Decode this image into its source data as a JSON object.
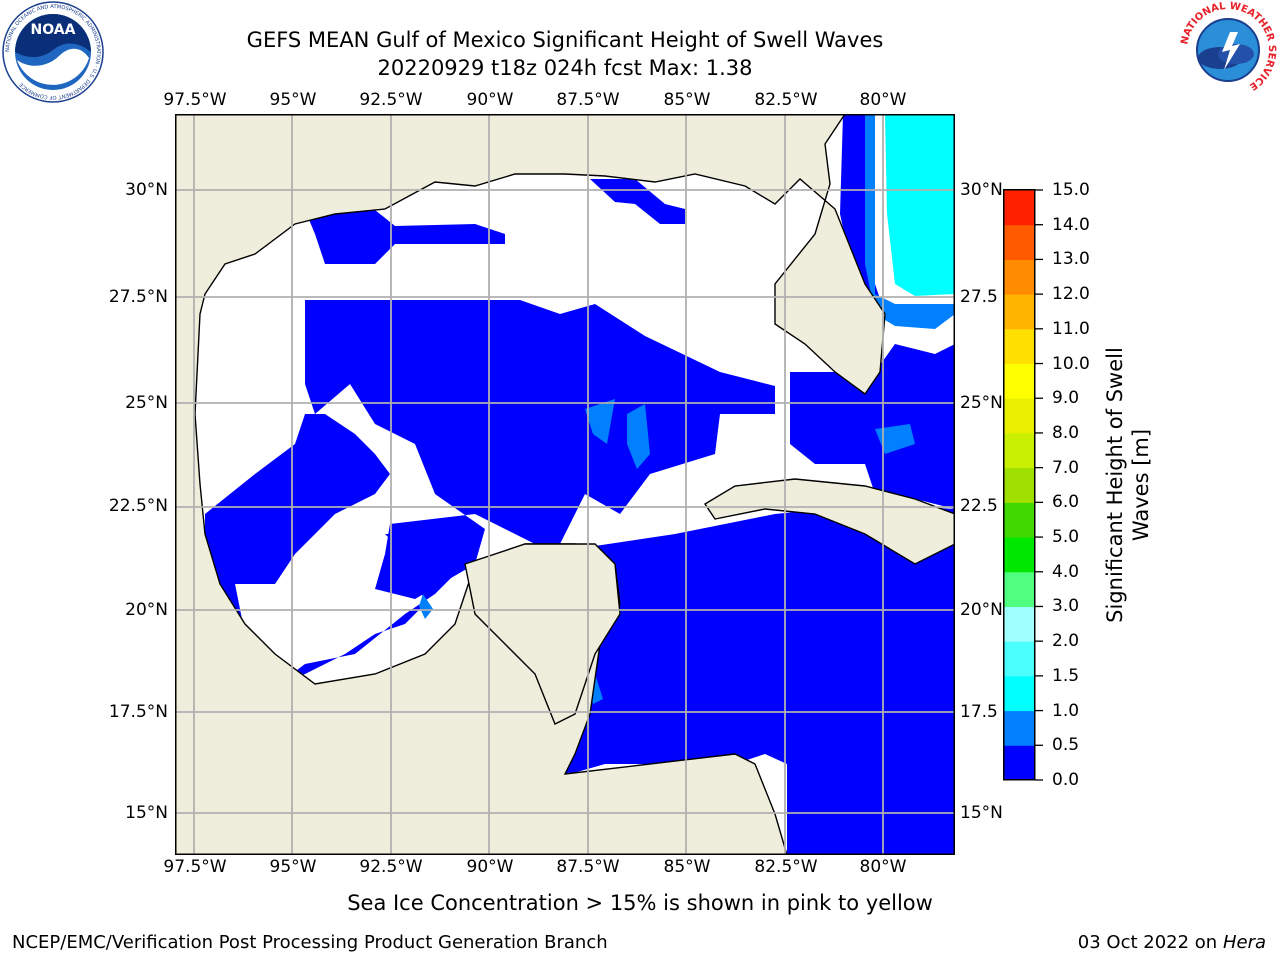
{
  "title": {
    "line1": "GEFS MEAN Gulf of Mexico Significant Height of Swell Waves",
    "line2": "20220929 t18z 024h fcst   Max: 1.38"
  },
  "map": {
    "lon_labels": [
      "97.5°W",
      "95°W",
      "92.5°W",
      "90°W",
      "87.5°W",
      "85°W",
      "82.5°W",
      "80°W"
    ],
    "lat_labels_left": [
      "30°N",
      "27.5°N",
      "25°N",
      "22.5°N",
      "20°N",
      "17.5°N",
      "15°N"
    ],
    "lat_labels_right": [
      "30°N",
      "27.5",
      "25°N",
      "22.5",
      "20°N",
      "17.5",
      "15°N"
    ],
    "extent": {
      "lon_min": -98,
      "lon_max": -78.2,
      "lat_min": 14,
      "lat_max": 31.6
    },
    "colors": {
      "land": "#efeedc",
      "no_data": "#ffffff",
      "grid": "#b0b0b0"
    }
  },
  "colorbar": {
    "label_line1": "Significant Height of Swell",
    "label_line2": "Waves [m]",
    "ticks": [
      "15.0",
      "14.0",
      "13.0",
      "12.0",
      "11.0",
      "10.0",
      "9.0",
      "8.0",
      "7.0",
      "6.0",
      "5.0",
      "4.0",
      "3.0",
      "2.0",
      "1.5",
      "1.0",
      "0.5",
      "0.0"
    ],
    "bin_colors": [
      "#0000ff",
      "#0080ff",
      "#00ffff",
      "#4cffff",
      "#a0ffff",
      "#50ff80",
      "#00e800",
      "#40d800",
      "#a0e000",
      "#c8f000",
      "#e8f000",
      "#ffff00",
      "#ffe000",
      "#ffb400",
      "#ff8c00",
      "#ff5a00",
      "#ff2000"
    ]
  },
  "sea_ice_note": "Sea Ice Concentration > 15% is shown in pink to yellow",
  "footer": {
    "left": "NCEP/EMC/Verification Post Processing Product Generation Branch",
    "right_date": "03 Oct 2022 on ",
    "right_host": "Hera"
  },
  "logos": {
    "noaa": {
      "text": "NOAA",
      "ring_text": "NATIONAL OCEANIC AND ATMOSPHERIC ADMINISTRATION · U.S. DEPARTMENT OF COMMERCE"
    },
    "nws": {
      "ring_text": "NATIONAL WEATHER SERVICE"
    }
  }
}
